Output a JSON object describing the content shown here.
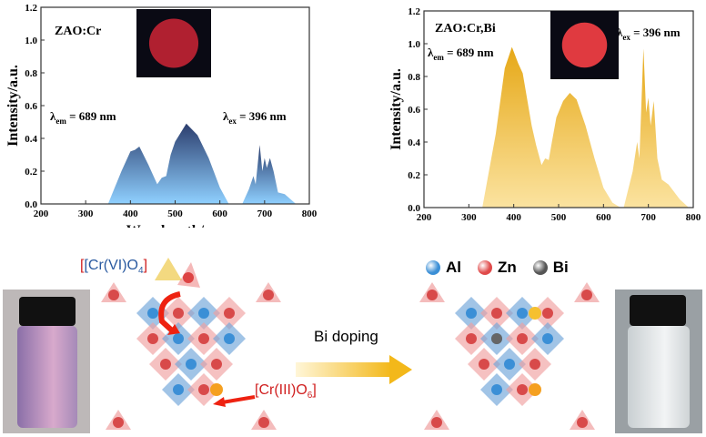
{
  "chart_data": [
    {
      "type": "area",
      "sample_label": "ZAO:Cr",
      "xlabel": "Wavelength/nm",
      "ylabel": "Intensity/a.u.",
      "xlim": [
        200,
        800
      ],
      "ylim": [
        0,
        1.2
      ],
      "xticks": [
        200,
        300,
        400,
        500,
        600,
        700,
        800
      ],
      "yticks": [
        0.0,
        0.2,
        0.4,
        0.6,
        0.8,
        1.0,
        1.2
      ],
      "annotations": {
        "em": "689 nm",
        "ex": "396 nm"
      },
      "grid": false,
      "colors": {
        "top": "#2c3e6e",
        "bottom": "#8fd0ff"
      },
      "series": [
        {
          "x": [
            350,
            380,
            400,
            410,
            420,
            440,
            450,
            460,
            470,
            480,
            490,
            500,
            525,
            550,
            575,
            600,
            620
          ],
          "y": [
            0,
            0.2,
            0.32,
            0.33,
            0.35,
            0.24,
            0.18,
            0.12,
            0.16,
            0.17,
            0.3,
            0.38,
            0.49,
            0.42,
            0.28,
            0.1,
            0
          ]
        },
        {
          "x": [
            650,
            665,
            675,
            680,
            689,
            695,
            700,
            705,
            712,
            720,
            730,
            745,
            770
          ],
          "y": [
            0,
            0.09,
            0.17,
            0.12,
            0.36,
            0.2,
            0.28,
            0.22,
            0.28,
            0.2,
            0.07,
            0.06,
            0
          ]
        }
      ]
    },
    {
      "type": "area",
      "sample_label": "ZAO:Cr,Bi",
      "xlabel": "Wavelength/nm",
      "ylabel": "Intensity/a.u.",
      "xlim": [
        200,
        800
      ],
      "ylim": [
        0,
        1.2
      ],
      "xticks": [
        200,
        300,
        400,
        500,
        600,
        700,
        800
      ],
      "yticks": [
        0.0,
        0.2,
        0.4,
        0.6,
        0.8,
        1.0,
        1.2
      ],
      "annotations": {
        "em": "689 nm",
        "ex": "396 nm"
      },
      "grid": false,
      "colors": {
        "top": "#e6a817",
        "bottom": "#fbe3a0"
      },
      "series": [
        {
          "x": [
            330,
            360,
            380,
            396,
            410,
            420,
            440,
            450,
            462,
            470,
            478,
            485,
            495,
            510,
            525,
            540,
            560,
            580,
            600,
            620,
            638
          ],
          "y": [
            0,
            0.45,
            0.85,
            0.98,
            0.88,
            0.82,
            0.5,
            0.38,
            0.26,
            0.3,
            0.29,
            0.4,
            0.55,
            0.65,
            0.7,
            0.66,
            0.5,
            0.3,
            0.12,
            0.03,
            0
          ]
        },
        {
          "x": [
            645,
            665,
            675,
            680,
            689,
            695,
            700,
            705,
            712,
            720,
            730,
            745,
            770,
            790
          ],
          "y": [
            0,
            0.22,
            0.4,
            0.3,
            0.97,
            0.58,
            0.67,
            0.5,
            0.65,
            0.3,
            0.17,
            0.14,
            0.05,
            0
          ]
        }
      ]
    }
  ],
  "labels": {
    "cr6": "[Cr(VI)O",
    "cr6_sub": "4",
    "cr6_close": "]",
    "cr3": "[Cr(III)O",
    "cr3_sub": "6",
    "cr3_close": "]",
    "bi_doping": "Bi doping"
  },
  "legend": [
    {
      "name": "Al",
      "color": "#3b8fd6"
    },
    {
      "name": "Zn",
      "color": "#e04a4a"
    },
    {
      "name": "Bi",
      "color": "#555555"
    }
  ]
}
